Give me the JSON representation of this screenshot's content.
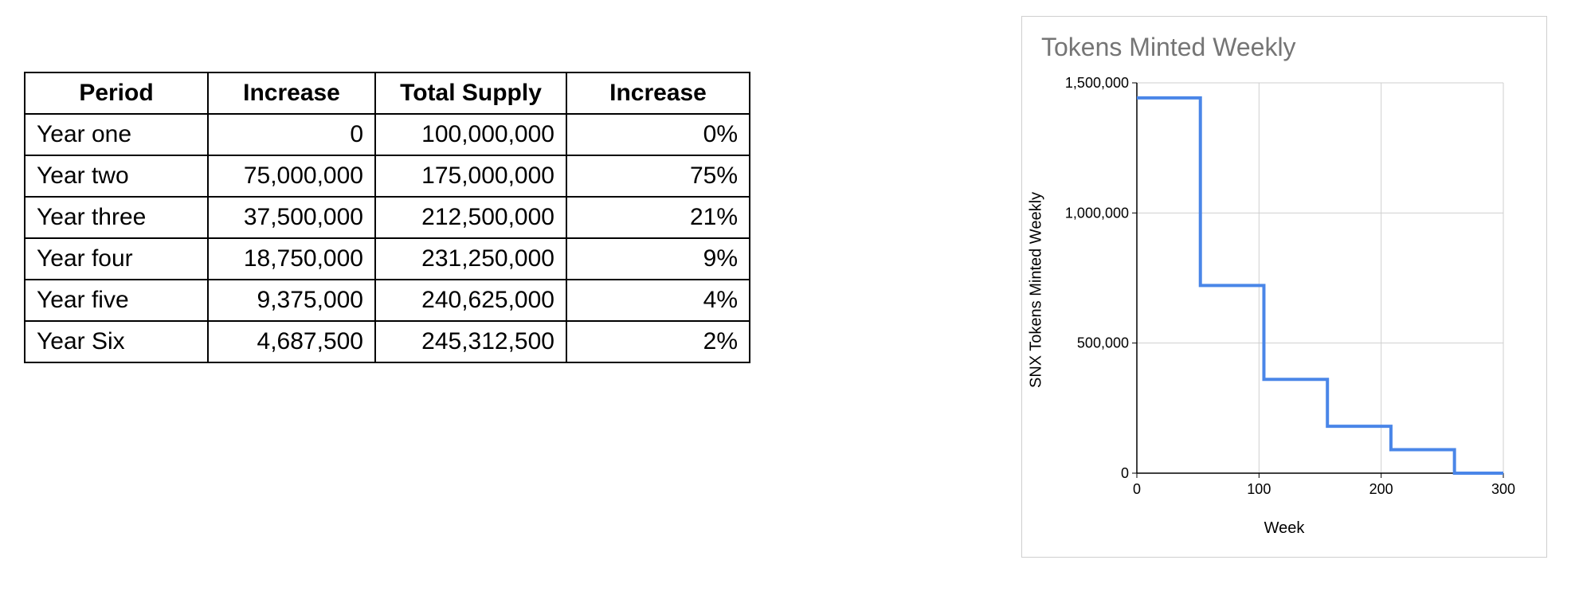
{
  "table": {
    "columns": [
      "Period",
      "Increase",
      "Total Supply",
      "Increase"
    ],
    "rows": [
      [
        "Year one",
        "0",
        "100,000,000",
        "0%"
      ],
      [
        "Year two",
        "75,000,000",
        "175,000,000",
        "75%"
      ],
      [
        "Year three",
        "37,500,000",
        "212,500,000",
        "21%"
      ],
      [
        "Year four",
        "18,750,000",
        "231,250,000",
        "9%"
      ],
      [
        "Year five",
        "9,375,000",
        "240,625,000",
        "4%"
      ],
      [
        "Year Six",
        "4,687,500",
        "245,312,500",
        "2%"
      ]
    ],
    "border_color": "#000000",
    "font_size": 30
  },
  "chart": {
    "type": "line",
    "title": "Tokens Minted Weekly",
    "title_color": "#757575",
    "title_fontsize": 32,
    "xlabel": "Week",
    "ylabel": "SNX Tokens Minted Weekly",
    "label_fontsize": 20,
    "tick_fontsize": 18,
    "xlim": [
      0,
      300
    ],
    "ylim": [
      0,
      1500000
    ],
    "xticks": [
      0,
      100,
      200,
      300
    ],
    "yticks": [
      0,
      500000,
      1000000,
      1500000
    ],
    "ytick_labels": [
      "0",
      "500,000",
      "1,000,000",
      "1,500,000"
    ],
    "grid_color": "#cfcfcf",
    "axis_color": "#000000",
    "background_color": "#ffffff",
    "line_color": "#4a86e8",
    "line_width": 4,
    "data": [
      {
        "x": 0,
        "y": 1442308
      },
      {
        "x": 52,
        "y": 1442308
      },
      {
        "x": 52,
        "y": 721154
      },
      {
        "x": 104,
        "y": 721154
      },
      {
        "x": 104,
        "y": 360577
      },
      {
        "x": 156,
        "y": 360577
      },
      {
        "x": 156,
        "y": 180288
      },
      {
        "x": 208,
        "y": 180288
      },
      {
        "x": 208,
        "y": 90144
      },
      {
        "x": 260,
        "y": 90144
      },
      {
        "x": 260,
        "y": 0
      },
      {
        "x": 300,
        "y": 0
      }
    ]
  }
}
